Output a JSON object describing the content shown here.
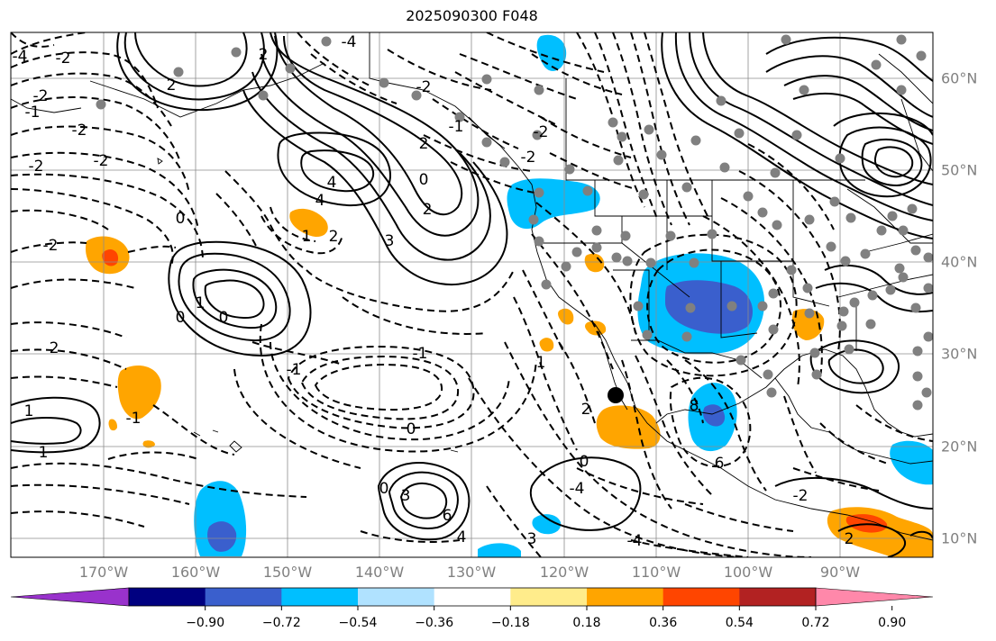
{
  "title": "2025090300 F048",
  "map": {
    "projection": "lat-lon",
    "lon_range": [
      -180,
      -80
    ],
    "lat_range": [
      7,
      64
    ],
    "lon_labels": [
      "170°W",
      "160°W",
      "150°W",
      "140°W",
      "130°W",
      "120°W",
      "110°W",
      "100°W",
      "90°W"
    ],
    "lat_labels": [
      "60°N",
      "50°N",
      "40°N",
      "30°N",
      "20°N",
      "10°N"
    ],
    "gridline_color": "#808080",
    "marker": {
      "lon": -114.8,
      "lat": 25.5
    }
  },
  "contour_labels": [
    "-4",
    "-2",
    "-2",
    "-2",
    "-4",
    "2",
    "-2",
    "-2",
    "-1",
    "2",
    "4",
    "2",
    "3",
    "4",
    "2",
    "0",
    "2",
    "1",
    "-2",
    "-2",
    "-2",
    "-1",
    "0",
    "1",
    "0",
    "-2",
    "2",
    "0",
    "1",
    "-1",
    "-1",
    "0",
    "-1",
    "1",
    "1",
    "0",
    "0",
    "-4",
    "3",
    "6",
    "4",
    "3",
    "2",
    "8",
    "6",
    "-4",
    "-2",
    "2"
  ],
  "colorbar": {
    "colors": [
      "#9932cc",
      "#000080",
      "#3a5fcd",
      "#00bfff",
      "#b0e2ff",
      "#ffffff",
      "#ffec8b",
      "#ffa500",
      "#ff4500",
      "#b22222",
      "#ff88aa"
    ],
    "ticks": [
      "−0.90",
      "−0.72",
      "−0.54",
      "−0.36",
      "−0.18",
      "0.18",
      "0.36",
      "0.54",
      "0.72",
      "0.90"
    ]
  }
}
